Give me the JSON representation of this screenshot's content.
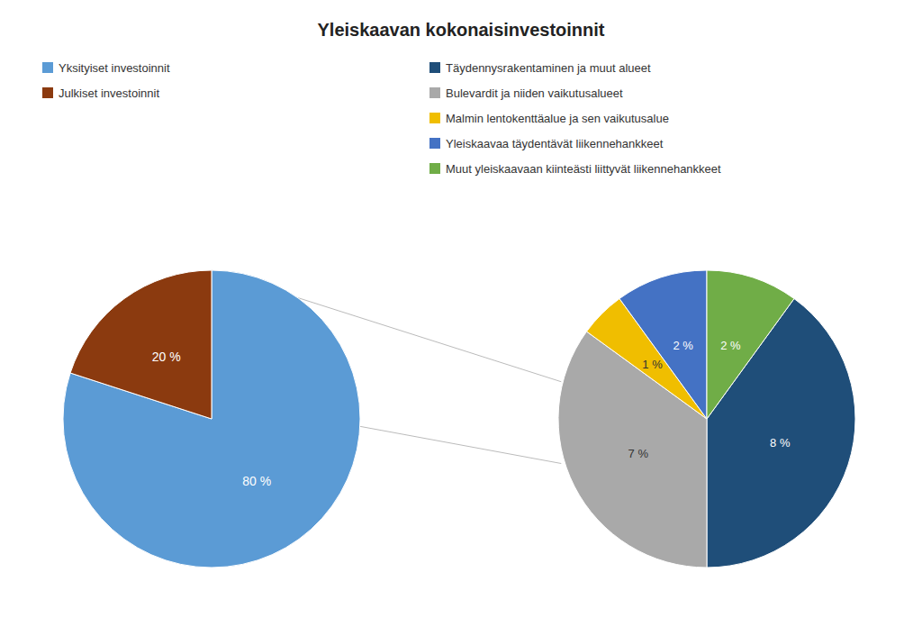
{
  "chart_data": [
    {
      "type": "pie",
      "title": "Yleiskaavan kokonaisinvestoinnit",
      "categories": [
        "Yksityiset investoinnit",
        "Julkiset investoinnit"
      ],
      "values": [
        80,
        20
      ],
      "value_labels": [
        "80 %",
        "20 %"
      ],
      "colors": [
        "#5B9BD5",
        "#8B3A0F"
      ],
      "data_labels": true,
      "legend": "top"
    },
    {
      "type": "pie",
      "categories": [
        "Täydennysrakentaminen ja muut alueet",
        "Bulevardit ja niiden vaikutusalueet",
        "Malmin lentokenttäalue ja sen vaikutusalue",
        "Yleiskaavaa täydentävät liikennehankkeet",
        "Muut yleiskaavaan kiinteästi liittyvät liikennehankkeet"
      ],
      "values": [
        8,
        7,
        1,
        2,
        2
      ],
      "value_labels": [
        "8 %",
        "7 %",
        "1 %",
        "2 %",
        "2 %"
      ],
      "colors": [
        "#1F4E79",
        "#A9A9A9",
        "#F0BE00",
        "#4472C4",
        "#70AD47"
      ],
      "data_labels": true,
      "legend": "top"
    }
  ]
}
